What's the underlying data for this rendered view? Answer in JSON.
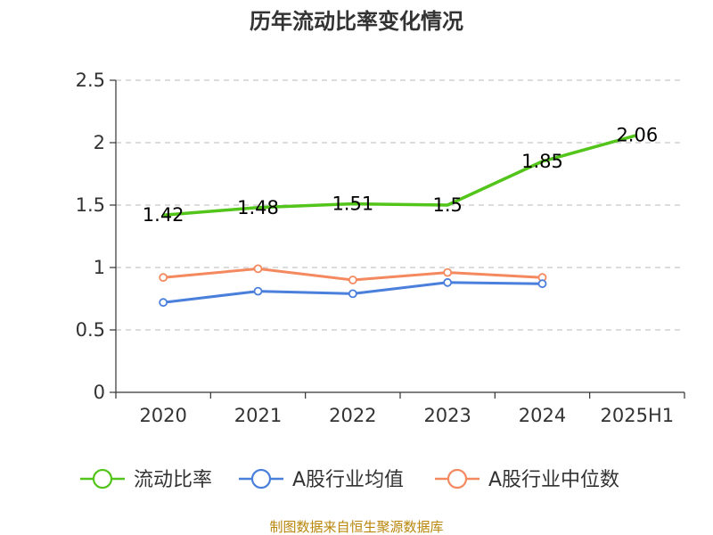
{
  "chart_data": {
    "type": "line",
    "title": "历年流动比率变化情况",
    "categories": [
      "2020",
      "2021",
      "2022",
      "2023",
      "2024",
      "2025H1"
    ],
    "ylim": [
      0,
      2.5
    ],
    "yticks": [
      "0",
      "0.5",
      "1",
      "1.5",
      "2",
      "2.5"
    ],
    "grid": true,
    "series": [
      {
        "name": "流动比率",
        "color": "#52c41a",
        "values": [
          1.42,
          1.48,
          1.51,
          1.5,
          1.85,
          2.06
        ],
        "labels": [
          "1.42",
          "1.48",
          "1.51",
          "1.5",
          "1.85",
          "2.06"
        ],
        "show_labels": true
      },
      {
        "name": "A股行业均值",
        "color": "#4a7fdb",
        "values": [
          0.72,
          0.81,
          0.79,
          0.88,
          0.87,
          null
        ],
        "show_labels": false
      },
      {
        "name": "A股行业中位数",
        "color": "#f4895f",
        "values": [
          0.92,
          0.99,
          0.9,
          0.96,
          0.92,
          null
        ],
        "show_labels": false
      }
    ],
    "legend_position": "bottom",
    "source": "制图数据来自恒生聚源数据库"
  }
}
